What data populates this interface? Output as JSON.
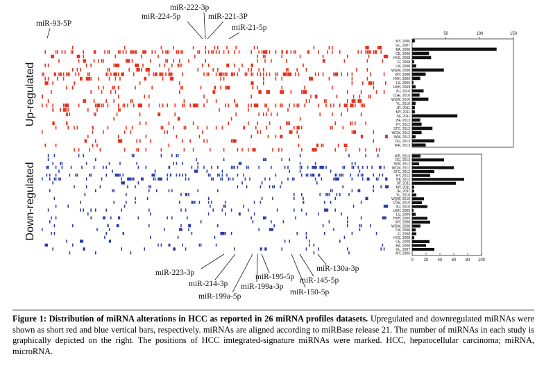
{
  "figure": {
    "side_labels": {
      "up": "Up-regulated",
      "down": "Down-regulated"
    },
    "top_markers": [
      "miR-93-5P",
      "miR-224-5p",
      "miR-222-3p",
      "miR-221-3P",
      "miR-21-5p"
    ],
    "bottom_markers": [
      "miR-223-3p",
      "miR-214-3p",
      "miR-199a-5p",
      "miR-199a-3p",
      "miR-195-5p",
      "miR-150-5p",
      "miR-145-5p",
      "miR-130a-3p"
    ],
    "colors": {
      "up": "#e8321c",
      "down": "#2b3ea8",
      "bar": "#111111"
    }
  },
  "chart_data": [
    {
      "type": "bar",
      "orientation": "horizontal",
      "panel": "up-regulated counts",
      "x_ticks": [
        "50",
        "100",
        "150"
      ],
      "xlim": [
        0,
        150
      ],
      "categories": [
        "MY, 2006",
        "GL, 2007",
        "BA, 2008",
        "CE, 2008",
        "HYS, 2008",
        "JJ, 2008",
        "LW, 2008",
        "WQW, 2008",
        "WY, 2008",
        "HXH, 2009",
        "LS, 2009",
        "LWH, 2009",
        "BJ, 2010",
        "CGE, 2010",
        "WQW, 2010",
        "YL, 2010",
        "JR, 2011",
        "MY, 2011",
        "SF, 2011",
        "BF, 2012",
        "HY, 2012",
        "STC, 2012",
        "WCM, 2012",
        "WW, 2012",
        "DG, 2013",
        "WR, 2013"
      ],
      "values": [
        4,
        0,
        125,
        25,
        28,
        3,
        6,
        47,
        20,
        12,
        2,
        5,
        17,
        11,
        24,
        5,
        4,
        4,
        67,
        12,
        14,
        30,
        14,
        5,
        33,
        20
      ]
    },
    {
      "type": "bar",
      "orientation": "horizontal",
      "panel": "down-regulated counts",
      "x_ticks": [
        "0",
        "20",
        "40",
        "60",
        "80",
        "100"
      ],
      "xlim": [
        0,
        100
      ],
      "categories": [
        "WR, 2013",
        "DG, 2013",
        "WW, 2012",
        "WCM, 2012",
        "STC, 2012",
        "HY, 2012",
        "BF, 2012",
        "SF, 2011",
        "MY, 2011",
        "JR, 2011",
        "YL, 2010",
        "WQW, 2010",
        "CGE, 2010",
        "BJ, 2010",
        "LWH, 2009",
        "LS, 2009",
        "HXH, 2009",
        "WY, 2008",
        "WQW, 2008",
        "LW, 2008",
        "JJ, 2008",
        "HYS, 2008",
        "CE, 2008",
        "BA, 2008",
        "GL, 2007",
        "MY, 2006"
      ],
      "values": [
        12,
        46,
        10,
        60,
        32,
        26,
        75,
        63,
        3,
        3,
        6,
        17,
        14,
        22,
        2,
        5,
        22,
        26,
        12,
        5,
        6,
        3,
        25,
        20,
        32,
        0
      ]
    }
  ],
  "caption": {
    "title": "Figure 1: Distribution of miRNA alterations in HCC as reported in 26 miRNA profiles datasets.",
    "body": "Upregulated and downregulated miRNAs were shown as short red and blue vertical bars, respectively. miRNAs are aligned according to miRBase release 21. The number of miRNAs in each study is graphically depicted on the right. The positions of HCC imtegrated-signature miRNAs were marked. HCC, hepatocellular carcinoma; miRNA, microRNA."
  }
}
